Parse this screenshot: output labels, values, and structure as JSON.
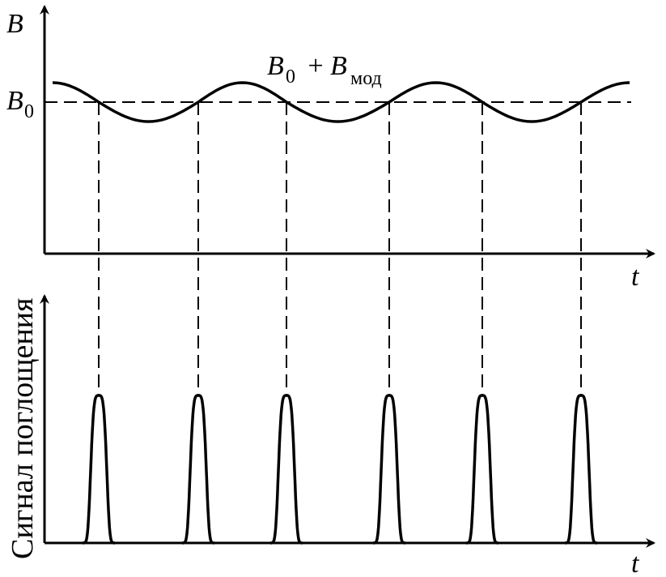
{
  "top_panel": {
    "y_axis_label": "B",
    "x_axis_label": "t",
    "baseline_label": "B",
    "baseline_subscript": "0",
    "curve_label": {
      "main": "B",
      "sub0": "0",
      "plus": " + ",
      "main2": "B",
      "sub_mod": "мод"
    }
  },
  "bottom_panel": {
    "y_axis_label": "Сигнал поглощения",
    "x_axis_label": "t",
    "peak_count": 6
  },
  "colors": {
    "ink": "#000000",
    "background": "#ffffff"
  }
}
